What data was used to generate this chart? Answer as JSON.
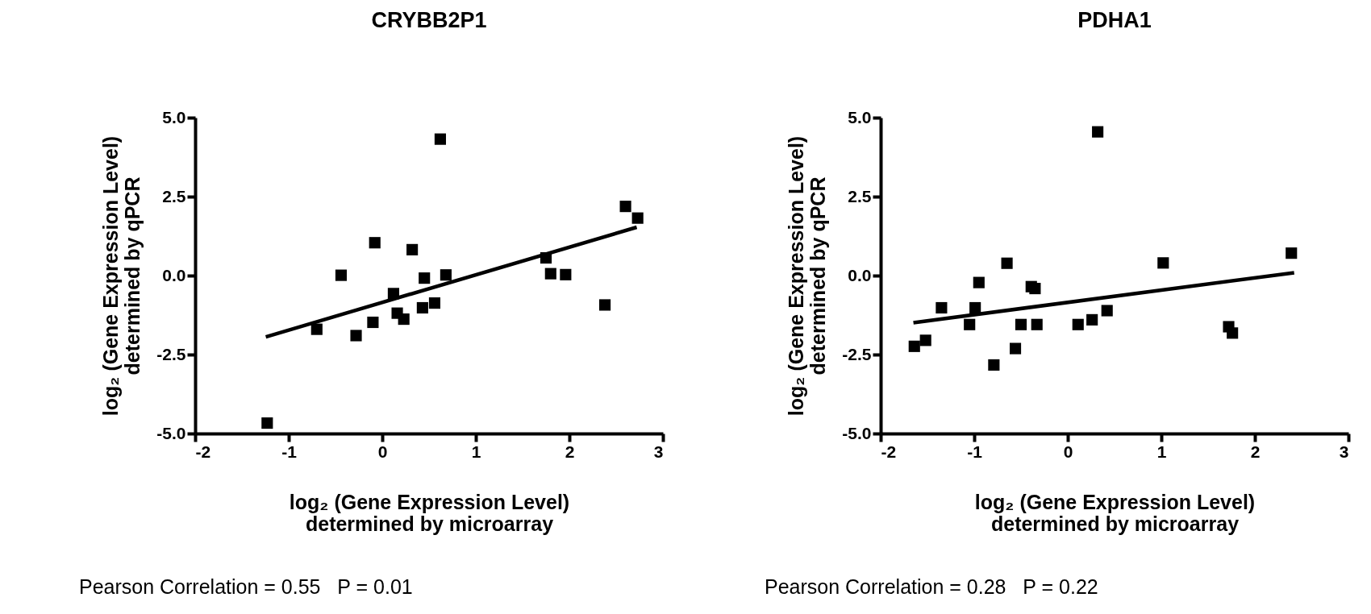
{
  "chart_data": [
    {
      "type": "scatter",
      "title": "CRYBB2P1",
      "xlabel": "log₂ (Gene Expression Level)\ndetermined by microarray",
      "ylabel": "log₂ (Gene Expression Level)\ndetermined by qPCR",
      "xlim": [
        -2,
        3
      ],
      "xticks": [
        -2,
        -1,
        0,
        1,
        2,
        3
      ],
      "ylim": [
        -5,
        5
      ],
      "yticks": [
        {
          "value": -5,
          "label": "-5.0"
        },
        {
          "value": -2.5,
          "label": "-2.5"
        },
        {
          "value": 0,
          "label": "0.0"
        },
        {
          "value": 2.5,
          "label": "2.5"
        },
        {
          "value": 5,
          "label": "5.0"
        }
      ],
      "grid": false,
      "annotations": [
        "Pearson Correlation = 0.55   P = 0.01"
      ],
      "series": [
        {
          "color": "#000000",
          "marker": "square",
          "x": [
            -1.23,
            -0.7,
            -0.44,
            -0.28,
            -0.1,
            -0.08,
            0.12,
            0.16,
            0.23,
            0.32,
            0.43,
            0.45,
            0.56,
            0.62,
            0.68,
            1.75,
            1.8,
            1.96,
            2.38,
            2.6,
            2.73
          ],
          "values": [
            -4.67,
            -1.7,
            0.01,
            -1.9,
            -1.48,
            1.04,
            -0.57,
            -1.19,
            -1.38,
            0.82,
            -1.02,
            -0.08,
            -0.87,
            4.32,
            0.02,
            0.56,
            0.06,
            0.03,
            -0.93,
            2.19,
            1.82
          ]
        },
        {
          "type": "line",
          "color": "#000000",
          "x": [
            -1.245,
            2.72
          ],
          "values": [
            -1.94,
            1.53
          ]
        }
      ]
    },
    {
      "type": "scatter",
      "title": "PDHA1",
      "xlabel": "log₂ (Gene Expression Level)\ndetermined by microarray",
      "ylabel": "log₂ (Gene Expression Level)\ndetermined by qPCR",
      "xlim": [
        -2,
        3
      ],
      "xticks": [
        -2,
        -1,
        0,
        1,
        2,
        3
      ],
      "ylim": [
        -5,
        5
      ],
      "yticks": [
        {
          "value": -5,
          "label": "-5.0"
        },
        {
          "value": -2.5,
          "label": "-2.5"
        },
        {
          "value": 0,
          "label": "0.0"
        },
        {
          "value": 2.5,
          "label": "2.5"
        },
        {
          "value": 5,
          "label": "5.0"
        }
      ],
      "grid": false,
      "annotations": [
        "Pearson Correlation = 0.28   P = 0.22"
      ],
      "series": [
        {
          "color": "#000000",
          "marker": "square",
          "x": [
            -1.64,
            -1.52,
            -1.35,
            -1.05,
            -0.99,
            -0.95,
            -0.79,
            -0.65,
            -0.56,
            -0.5,
            -0.39,
            -0.35,
            -0.33,
            0.11,
            0.26,
            0.32,
            0.42,
            1.02,
            1.72,
            1.76,
            2.39
          ],
          "values": [
            -2.24,
            -2.05,
            -1.02,
            -1.55,
            -1.02,
            -0.22,
            -2.83,
            0.39,
            -2.31,
            -1.55,
            -0.35,
            -0.41,
            -1.55,
            -1.55,
            -1.4,
            4.55,
            -1.11,
            0.4,
            -1.62,
            -1.82,
            0.71
          ]
        },
        {
          "type": "line",
          "color": "#000000",
          "x": [
            -1.65,
            2.42
          ],
          "values": [
            -1.49,
            0.09
          ]
        }
      ]
    }
  ]
}
